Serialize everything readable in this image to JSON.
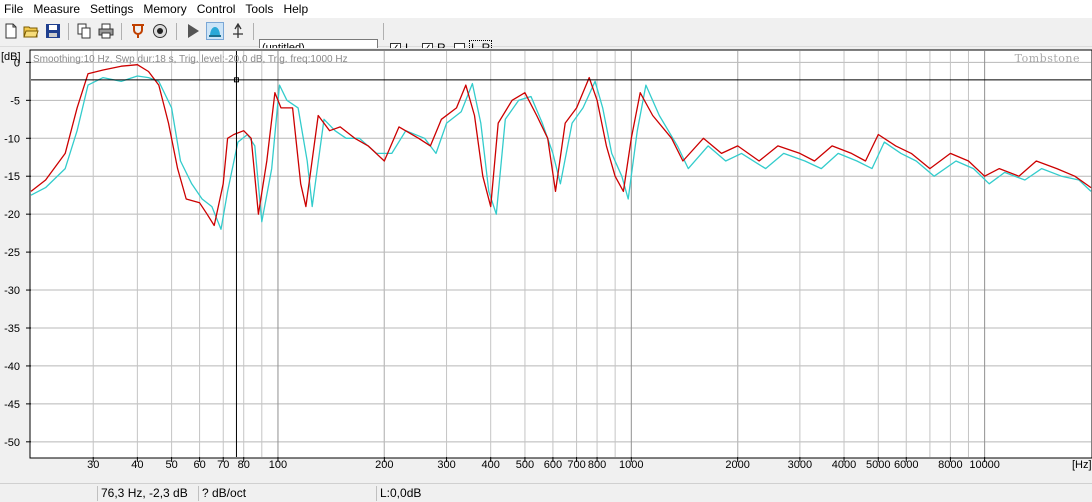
{
  "menu": [
    "File",
    "Measure",
    "Settings",
    "Memory",
    "Control",
    "Tools",
    "Help"
  ],
  "toolbar": {
    "title_value": "(untitled)",
    "checkboxes": [
      {
        "label": "L",
        "checked": true
      },
      {
        "label": "R",
        "checked": true
      },
      {
        "label": "L-R",
        "checked": false
      }
    ],
    "icons": [
      "new-file-icon",
      "open-folder-icon",
      "save-icon",
      "copy-icon",
      "print-icon",
      "tuning-fork-icon",
      "speaker-icon",
      "play-icon",
      "live-mode-icon",
      "trigger-icon"
    ]
  },
  "chart_data": {
    "type": "line",
    "info_text": "Smoothing:10 Hz, Swp dur:18 s, Trig. level:-20,0 dB, Trig. freq:1000 Hz",
    "watermark": "Tombstone",
    "y_unit": "[dB]",
    "x_unit": "[Hz]",
    "x_scale": "log",
    "xlim": [
      20,
      20000
    ],
    "ylim": [
      -52,
      1.5
    ],
    "y_ticks": [
      0,
      -5,
      -10,
      -15,
      -20,
      -25,
      -30,
      -35,
      -40,
      -45,
      -50
    ],
    "x_ticks": [
      30,
      40,
      50,
      60,
      70,
      80,
      100,
      200,
      300,
      400,
      500,
      600,
      700,
      800,
      1000,
      2000,
      3000,
      4000,
      5000,
      6000,
      8000,
      10000
    ],
    "x_tick_labels": [
      "30",
      "40",
      "50",
      "60",
      "70",
      "80",
      "100",
      "200",
      "300",
      "400",
      "500",
      "600",
      "700",
      "800",
      "1000",
      "2000",
      "3000",
      "4000",
      "5000",
      "6000",
      "8000",
      "10000"
    ],
    "cursor": {
      "x": 76.3,
      "y": -2.3
    },
    "grid": true,
    "series": [
      {
        "color": "#cc0000",
        "points": [
          [
            20,
            -17
          ],
          [
            22,
            -15.5
          ],
          [
            25,
            -12
          ],
          [
            27,
            -6
          ],
          [
            29,
            -1.5
          ],
          [
            32,
            -1
          ],
          [
            36,
            -0.5
          ],
          [
            40,
            -0.3
          ],
          [
            43,
            -1.2
          ],
          [
            46,
            -3
          ],
          [
            49,
            -8
          ],
          [
            52,
            -14
          ],
          [
            55,
            -18
          ],
          [
            60,
            -18.5
          ],
          [
            63,
            -20
          ],
          [
            66,
            -21.5
          ],
          [
            70,
            -16
          ],
          [
            72,
            -10
          ],
          [
            75,
            -9.5
          ],
          [
            80,
            -9
          ],
          [
            84,
            -10
          ],
          [
            88,
            -20
          ],
          [
            93,
            -13
          ],
          [
            98,
            -4
          ],
          [
            102,
            -6
          ],
          [
            110,
            -6
          ],
          [
            116,
            -16
          ],
          [
            120,
            -19
          ],
          [
            130,
            -7
          ],
          [
            140,
            -9
          ],
          [
            150,
            -8.5
          ],
          [
            165,
            -10
          ],
          [
            180,
            -11
          ],
          [
            200,
            -13
          ],
          [
            220,
            -8.5
          ],
          [
            250,
            -10
          ],
          [
            270,
            -11
          ],
          [
            290,
            -7.5
          ],
          [
            320,
            -6
          ],
          [
            340,
            -3
          ],
          [
            360,
            -7
          ],
          [
            380,
            -15
          ],
          [
            400,
            -19
          ],
          [
            420,
            -8
          ],
          [
            460,
            -5
          ],
          [
            500,
            -4
          ],
          [
            540,
            -7
          ],
          [
            580,
            -10
          ],
          [
            610,
            -17
          ],
          [
            650,
            -8
          ],
          [
            700,
            -6
          ],
          [
            760,
            -2
          ],
          [
            800,
            -5
          ],
          [
            850,
            -11
          ],
          [
            900,
            -15
          ],
          [
            950,
            -17
          ],
          [
            1000,
            -10
          ],
          [
            1060,
            -4
          ],
          [
            1150,
            -7
          ],
          [
            1300,
            -10
          ],
          [
            1400,
            -13
          ],
          [
            1600,
            -10
          ],
          [
            1800,
            -12
          ],
          [
            2000,
            -11
          ],
          [
            2300,
            -13
          ],
          [
            2600,
            -11
          ],
          [
            3000,
            -12
          ],
          [
            3300,
            -13
          ],
          [
            3700,
            -11
          ],
          [
            4200,
            -12
          ],
          [
            4600,
            -13
          ],
          [
            5000,
            -9.5
          ],
          [
            5600,
            -11
          ],
          [
            6200,
            -12
          ],
          [
            7000,
            -14
          ],
          [
            8000,
            -12
          ],
          [
            9000,
            -13
          ],
          [
            10000,
            -15
          ],
          [
            11000,
            -14
          ],
          [
            12500,
            -15
          ],
          [
            14000,
            -13
          ],
          [
            16000,
            -14
          ],
          [
            18000,
            -15
          ],
          [
            20000,
            -16.5
          ]
        ]
      },
      {
        "color": "#33cccc",
        "points": [
          [
            20,
            -17.5
          ],
          [
            22,
            -16.5
          ],
          [
            25,
            -14
          ],
          [
            27,
            -9
          ],
          [
            29,
            -3
          ],
          [
            32,
            -2
          ],
          [
            36,
            -2.5
          ],
          [
            40,
            -1.8
          ],
          [
            43,
            -2
          ],
          [
            46,
            -2.5
          ],
          [
            50,
            -6
          ],
          [
            53,
            -13
          ],
          [
            57,
            -16
          ],
          [
            61,
            -18
          ],
          [
            65,
            -19
          ],
          [
            69,
            -22
          ],
          [
            72,
            -17
          ],
          [
            77,
            -10.5
          ],
          [
            82,
            -9.5
          ],
          [
            86,
            -11
          ],
          [
            90,
            -21
          ],
          [
            96,
            -14
          ],
          [
            101,
            -3
          ],
          [
            106,
            -5
          ],
          [
            114,
            -6
          ],
          [
            121,
            -13
          ],
          [
            125,
            -19
          ],
          [
            135,
            -7.5
          ],
          [
            145,
            -9
          ],
          [
            156,
            -10
          ],
          [
            170,
            -10
          ],
          [
            190,
            -12
          ],
          [
            210,
            -12
          ],
          [
            230,
            -9
          ],
          [
            260,
            -10
          ],
          [
            280,
            -12
          ],
          [
            300,
            -8
          ],
          [
            330,
            -6.5
          ],
          [
            355,
            -2.8
          ],
          [
            375,
            -8
          ],
          [
            395,
            -17
          ],
          [
            415,
            -20
          ],
          [
            440,
            -7.5
          ],
          [
            480,
            -5
          ],
          [
            520,
            -4.5
          ],
          [
            560,
            -8
          ],
          [
            600,
            -12
          ],
          [
            630,
            -16
          ],
          [
            680,
            -8
          ],
          [
            730,
            -6
          ],
          [
            790,
            -2.5
          ],
          [
            830,
            -6
          ],
          [
            880,
            -12
          ],
          [
            940,
            -15
          ],
          [
            980,
            -18
          ],
          [
            1040,
            -9
          ],
          [
            1100,
            -3
          ],
          [
            1200,
            -7
          ],
          [
            1350,
            -11
          ],
          [
            1450,
            -14
          ],
          [
            1650,
            -11
          ],
          [
            1850,
            -13
          ],
          [
            2050,
            -12
          ],
          [
            2400,
            -14
          ],
          [
            2700,
            -12
          ],
          [
            3100,
            -13
          ],
          [
            3450,
            -14
          ],
          [
            3850,
            -12
          ],
          [
            4350,
            -13
          ],
          [
            4800,
            -14
          ],
          [
            5200,
            -10.5
          ],
          [
            5800,
            -12
          ],
          [
            6400,
            -13
          ],
          [
            7200,
            -15
          ],
          [
            8300,
            -13
          ],
          [
            9300,
            -14
          ],
          [
            10300,
            -16
          ],
          [
            11400,
            -14.5
          ],
          [
            13000,
            -15.5
          ],
          [
            14500,
            -14
          ],
          [
            16500,
            -15
          ],
          [
            18500,
            -15.5
          ],
          [
            20000,
            -17
          ]
        ]
      }
    ]
  },
  "status": {
    "cursor_readout": "76,3 Hz, -2,3 dB",
    "slope": "? dB/oct",
    "level": "L:0,0dB"
  }
}
